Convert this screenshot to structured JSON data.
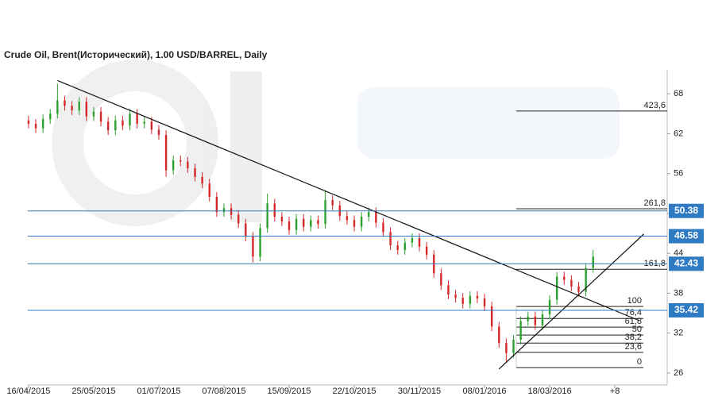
{
  "chart_data": {
    "type": "candlestick",
    "title": "Crude Oil, Brent(Исторический), 1.00 USD/BARREL, Daily",
    "x": [
      0,
      3,
      6,
      9,
      12,
      15,
      18,
      21,
      24,
      27,
      30,
      33,
      36,
      39,
      42,
      45,
      48,
      51,
      54,
      57,
      60,
      63,
      66,
      69,
      72,
      75,
      78,
      81,
      84,
      87,
      90,
      93,
      96,
      99,
      102,
      105,
      108,
      111,
      114,
      117,
      120,
      123,
      126,
      129,
      132,
      135,
      138,
      141,
      144,
      147,
      150,
      153,
      156,
      159,
      162,
      165,
      168,
      171,
      174,
      177,
      180,
      183,
      186,
      189,
      192,
      195,
      198,
      201,
      204,
      207,
      210,
      213,
      216,
      219,
      222,
      225,
      228,
      231,
      234
    ],
    "open": [
      64.0,
      63.5,
      62.8,
      64.2,
      65.0,
      67.0,
      66.2,
      65.5,
      66.8,
      64.6,
      65.3,
      63.8,
      62.5,
      64.0,
      63.2,
      65.0,
      63.5,
      63.8,
      62.6,
      61.8,
      56.5,
      58.0,
      57.8,
      56.8,
      55.5,
      54.5,
      52.5,
      50.2,
      50.8,
      49.8,
      48.5,
      46.5,
      43.5,
      47.8,
      51.5,
      49.5,
      48.8,
      47.5,
      49.2,
      48.0,
      49.0,
      48.4,
      52.0,
      51.2,
      49.6,
      49.0,
      48.0,
      49.5,
      50.2,
      48.6,
      47.2,
      45.2,
      44.5,
      45.6,
      46.3,
      45.0,
      43.8,
      41.0,
      39.2,
      37.8,
      37.3,
      36.4,
      37.6,
      37.2,
      36.0,
      33.0,
      30.5,
      29.0,
      31.0,
      33.8,
      34.5,
      33.2,
      34.8,
      37.0,
      40.5,
      40.0,
      39.0,
      38.2,
      41.8
    ],
    "high": [
      64.7,
      64.2,
      64.9,
      65.7,
      69.5,
      67.7,
      66.9,
      67.5,
      67.5,
      66.0,
      66.0,
      64.5,
      64.7,
      64.7,
      65.7,
      65.7,
      64.5,
      64.5,
      63.3,
      62.5,
      58.7,
      58.7,
      58.5,
      57.5,
      56.2,
      55.2,
      53.2,
      51.5,
      51.5,
      50.5,
      49.2,
      47.2,
      48.5,
      53.0,
      52.2,
      50.2,
      49.5,
      49.9,
      49.9,
      49.7,
      49.7,
      53.5,
      52.7,
      51.9,
      50.3,
      49.7,
      50.2,
      50.9,
      50.9,
      49.3,
      47.9,
      45.9,
      46.3,
      47.0,
      47.0,
      45.7,
      44.5,
      41.7,
      39.9,
      38.5,
      38.0,
      38.3,
      38.3,
      37.9,
      36.7,
      33.7,
      31.2,
      31.7,
      34.5,
      35.2,
      35.2,
      35.5,
      37.7,
      41.2,
      41.2,
      40.7,
      39.7,
      42.5,
      44.5
    ],
    "low": [
      62.8,
      62.1,
      62.1,
      63.5,
      64.3,
      65.5,
      64.8,
      64.8,
      63.9,
      63.9,
      63.1,
      61.8,
      61.8,
      62.5,
      62.5,
      62.8,
      62.8,
      61.9,
      61.1,
      55.5,
      55.8,
      57.1,
      56.1,
      54.8,
      53.8,
      51.8,
      49.5,
      49.5,
      49.1,
      47.8,
      45.8,
      42.6,
      42.8,
      47.1,
      48.8,
      48.1,
      46.8,
      46.8,
      47.3,
      47.3,
      47.7,
      47.7,
      50.5,
      48.9,
      48.3,
      47.3,
      47.3,
      48.8,
      47.9,
      46.5,
      44.5,
      43.8,
      43.8,
      44.9,
      44.3,
      43.1,
      40.3,
      38.5,
      37.1,
      36.6,
      35.7,
      35.7,
      36.5,
      35.3,
      32.3,
      29.8,
      27.6,
      28.3,
      30.3,
      33.1,
      32.5,
      32.5,
      34.1,
      36.3,
      39.3,
      38.3,
      37.5,
      37.5,
      41.1
    ],
    "close": [
      63.5,
      62.8,
      64.2,
      65.0,
      67.0,
      66.2,
      65.5,
      66.8,
      64.6,
      65.3,
      63.8,
      62.5,
      64.0,
      63.2,
      65.0,
      63.5,
      63.8,
      62.6,
      61.8,
      56.5,
      58.0,
      57.8,
      56.8,
      55.5,
      54.5,
      52.5,
      50.2,
      50.8,
      49.8,
      48.5,
      46.5,
      43.5,
      47.8,
      51.5,
      49.5,
      48.8,
      47.5,
      49.2,
      48.0,
      49.0,
      48.4,
      52.0,
      51.2,
      49.6,
      49.0,
      48.0,
      49.5,
      50.2,
      48.6,
      47.2,
      45.2,
      44.5,
      45.6,
      46.3,
      45.0,
      43.8,
      41.0,
      39.2,
      37.8,
      37.3,
      36.4,
      37.6,
      37.2,
      36.0,
      33.0,
      30.5,
      29.0,
      31.0,
      33.8,
      34.5,
      33.2,
      34.8,
      37.0,
      40.5,
      40.0,
      39.0,
      38.2,
      41.8,
      43.5
    ],
    "up_color": "#2ca02c",
    "down_color": "#d62728",
    "xlim": [
      -0.3,
      264.7
    ],
    "xticks": [
      {
        "value": 0,
        "label": "16/04/2015"
      },
      {
        "value": 27,
        "label": "25/05/2015"
      },
      {
        "value": 54,
        "label": "01/07/2015"
      },
      {
        "value": 81,
        "label": "07/08/2015"
      },
      {
        "value": 108,
        "label": "15/09/2015"
      },
      {
        "value": 135,
        "label": "22/10/2015"
      },
      {
        "value": 162,
        "label": "30/11/2015"
      },
      {
        "value": 189,
        "label": "08/01/2016"
      },
      {
        "value": 216,
        "label": "18/03/2016"
      },
      {
        "value": 243,
        "label": "+8"
      }
    ],
    "ylim": [
      24.2,
      71.6
    ],
    "yticks": [
      26,
      32,
      38,
      44,
      50,
      56,
      62,
      68
    ],
    "levels": [
      50.38,
      46.58,
      42.43,
      35.42
    ],
    "level_color": "#2e7bc4",
    "fibonacci": [
      {
        "label": "423,6",
        "value": 65.4
      },
      {
        "label": "261,8",
        "value": 50.7
      },
      {
        "label": "161,8",
        "value": 41.6
      },
      {
        "label": "100",
        "value": 36.0
      },
      {
        "label": "76,4",
        "value": 34.2
      },
      {
        "label": "61,8",
        "value": 32.9
      },
      {
        "label": "50",
        "value": 31.7
      },
      {
        "label": "38,2",
        "value": 30.5
      },
      {
        "label": "23,6",
        "value": 29.1
      },
      {
        "label": "0",
        "value": 26.8
      }
    ],
    "trendlines": [
      {
        "x": [
          12,
          253
        ],
        "y": [
          70.0,
          33.9
        ]
      },
      {
        "x": [
          195,
          255
        ],
        "y": [
          26.6,
          46.9
        ]
      }
    ]
  }
}
